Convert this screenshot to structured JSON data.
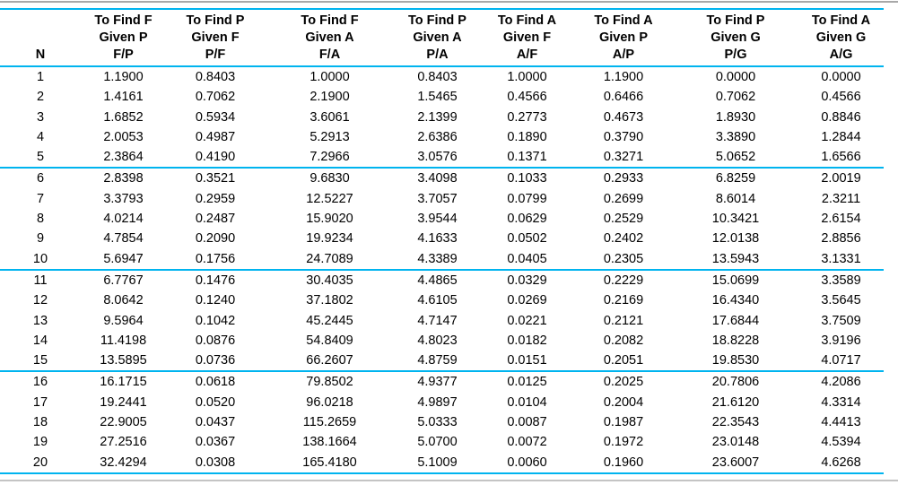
{
  "colors": {
    "accent_line": "#00b4ef",
    "frame_line_top": "#a8a8a8",
    "frame_line_bottom": "#c4c4c4",
    "text_color": "#000000",
    "page_bg": "#ffffff"
  },
  "chart_data": {
    "type": "table",
    "columns": [
      "N",
      "F/P",
      "P/F",
      "F/A",
      "P/A",
      "A/F",
      "A/P",
      "P/G",
      "A/G"
    ],
    "header_lines": [
      [
        "",
        "",
        "N"
      ],
      [
        "To Find F",
        "Given P",
        "F/P"
      ],
      [
        "To Find P",
        "Given F",
        "P/F"
      ],
      [
        "To Find F",
        "Given A",
        "F/A"
      ],
      [
        "To Find P",
        "Given A",
        "P/A"
      ],
      [
        "To Find A",
        "Given F",
        "A/F"
      ],
      [
        "To Find A",
        "Given P",
        "A/P"
      ],
      [
        "To Find P",
        "Given G",
        "P/G"
      ],
      [
        "To Find A",
        "Given G",
        "A/G"
      ]
    ],
    "group_separator_every": 5,
    "rows": [
      [
        "1",
        "1.1900",
        "0.8403",
        "1.0000",
        "0.8403",
        "1.0000",
        "1.1900",
        "0.0000",
        "0.0000"
      ],
      [
        "2",
        "1.4161",
        "0.7062",
        "2.1900",
        "1.5465",
        "0.4566",
        "0.6466",
        "0.7062",
        "0.4566"
      ],
      [
        "3",
        "1.6852",
        "0.5934",
        "3.6061",
        "2.1399",
        "0.2773",
        "0.4673",
        "1.8930",
        "0.8846"
      ],
      [
        "4",
        "2.0053",
        "0.4987",
        "5.2913",
        "2.6386",
        "0.1890",
        "0.3790",
        "3.3890",
        "1.2844"
      ],
      [
        "5",
        "2.3864",
        "0.4190",
        "7.2966",
        "3.0576",
        "0.1371",
        "0.3271",
        "5.0652",
        "1.6566"
      ],
      [
        "6",
        "2.8398",
        "0.3521",
        "9.6830",
        "3.4098",
        "0.1033",
        "0.2933",
        "6.8259",
        "2.0019"
      ],
      [
        "7",
        "3.3793",
        "0.2959",
        "12.5227",
        "3.7057",
        "0.0799",
        "0.2699",
        "8.6014",
        "2.3211"
      ],
      [
        "8",
        "4.0214",
        "0.2487",
        "15.9020",
        "3.9544",
        "0.0629",
        "0.2529",
        "10.3421",
        "2.6154"
      ],
      [
        "9",
        "4.7854",
        "0.2090",
        "19.9234",
        "4.1633",
        "0.0502",
        "0.2402",
        "12.0138",
        "2.8856"
      ],
      [
        "10",
        "5.6947",
        "0.1756",
        "24.7089",
        "4.3389",
        "0.0405",
        "0.2305",
        "13.5943",
        "3.1331"
      ],
      [
        "11",
        "6.7767",
        "0.1476",
        "30.4035",
        "4.4865",
        "0.0329",
        "0.2229",
        "15.0699",
        "3.3589"
      ],
      [
        "12",
        "8.0642",
        "0.1240",
        "37.1802",
        "4.6105",
        "0.0269",
        "0.2169",
        "16.4340",
        "3.5645"
      ],
      [
        "13",
        "9.5964",
        "0.1042",
        "45.2445",
        "4.7147",
        "0.0221",
        "0.2121",
        "17.6844",
        "3.7509"
      ],
      [
        "14",
        "11.4198",
        "0.0876",
        "54.8409",
        "4.8023",
        "0.0182",
        "0.2082",
        "18.8228",
        "3.9196"
      ],
      [
        "15",
        "13.5895",
        "0.0736",
        "66.2607",
        "4.8759",
        "0.0151",
        "0.2051",
        "19.8530",
        "4.0717"
      ],
      [
        "16",
        "16.1715",
        "0.0618",
        "79.8502",
        "4.9377",
        "0.0125",
        "0.2025",
        "20.7806",
        "4.2086"
      ],
      [
        "17",
        "19.2441",
        "0.0520",
        "96.0218",
        "4.9897",
        "0.0104",
        "0.2004",
        "21.6120",
        "4.3314"
      ],
      [
        "18",
        "22.9005",
        "0.0437",
        "115.2659",
        "5.0333",
        "0.0087",
        "0.1987",
        "22.3543",
        "4.4413"
      ],
      [
        "19",
        "27.2516",
        "0.0367",
        "138.1664",
        "5.0700",
        "0.0072",
        "0.1972",
        "23.0148",
        "4.5394"
      ],
      [
        "20",
        "32.4294",
        "0.0308",
        "165.4180",
        "5.1009",
        "0.0060",
        "0.1960",
        "23.6007",
        "4.6268"
      ]
    ]
  }
}
